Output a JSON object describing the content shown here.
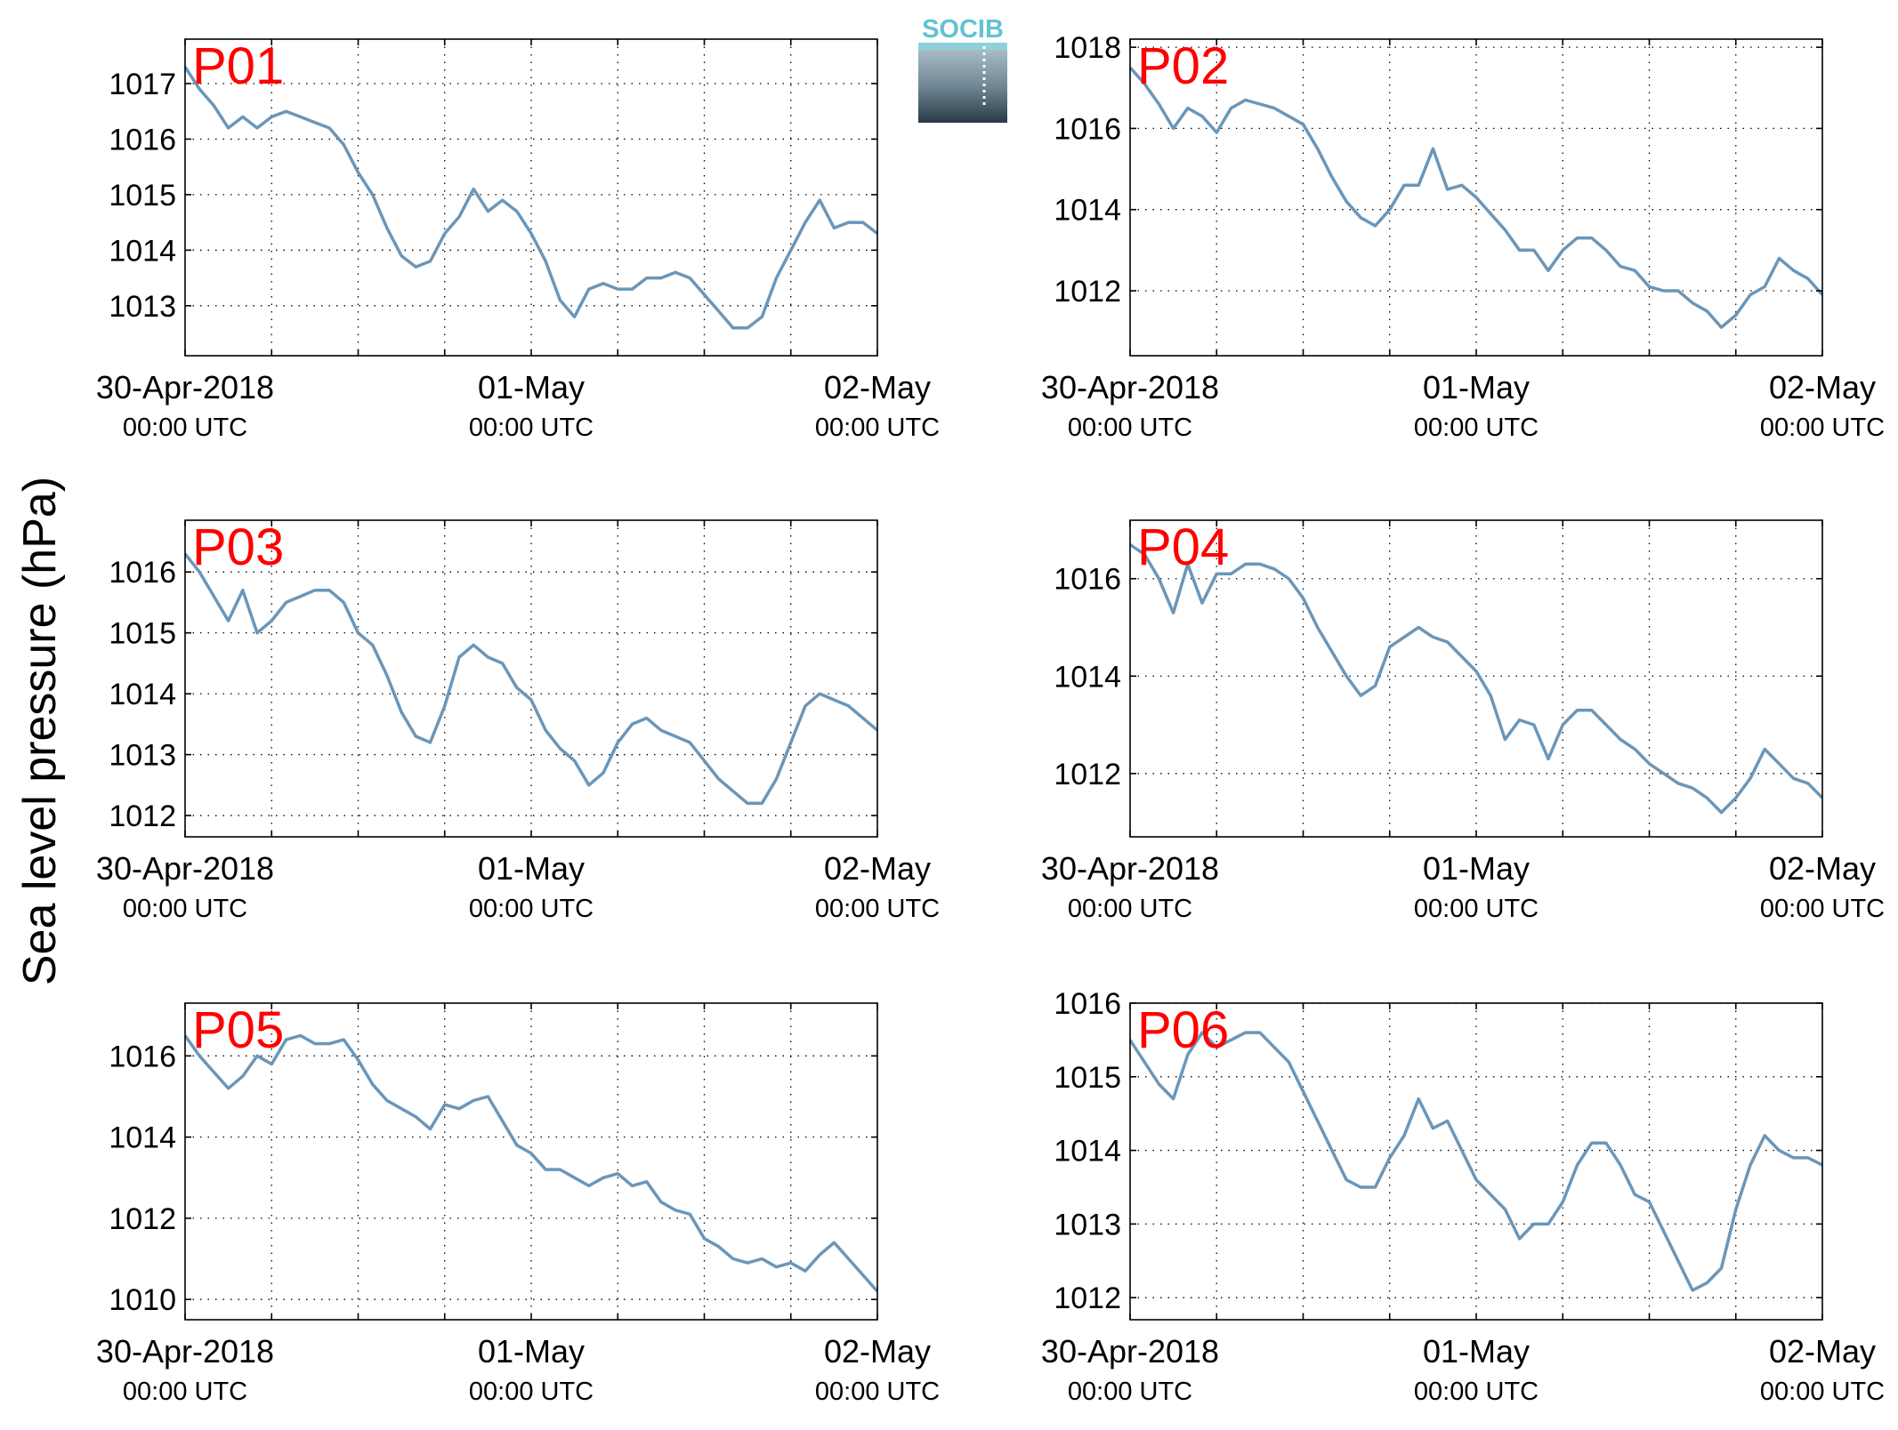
{
  "figure": {
    "ylabel": "Sea level pressure (hPa)",
    "logo_text": "SOCIB"
  },
  "colors": {
    "line": "#6a96b9",
    "panel_label": "#ff0000",
    "axis": "#000000",
    "grid": "#000000",
    "logo_top": "#63c2d3",
    "logo_dark": "#2a3a45"
  },
  "chart_data": [
    {
      "type": "line",
      "name": "P01",
      "x_ticks": [
        "30-Apr-2018|00:00 UTC",
        "01-May|00:00 UTC",
        "02-May|00:00 UTC"
      ],
      "xlim_hours": [
        0,
        48
      ],
      "ylim": [
        1012.1,
        1017.8
      ],
      "yticks": [
        1013,
        1014,
        1015,
        1016,
        1017
      ],
      "grid": "dotted",
      "x_hours": [
        0,
        1,
        2,
        3,
        4,
        5,
        6,
        7,
        8,
        9,
        10,
        11,
        12,
        13,
        14,
        15,
        16,
        17,
        18,
        19,
        20,
        21,
        22,
        23,
        24,
        25,
        26,
        27,
        28,
        29,
        30,
        31,
        32,
        33,
        34,
        35,
        36,
        37,
        38,
        39,
        40,
        41,
        42,
        43,
        44,
        45,
        46,
        47,
        48
      ],
      "values": [
        1017.3,
        1016.9,
        1016.6,
        1016.2,
        1016.4,
        1016.2,
        1016.4,
        1016.5,
        1016.4,
        1016.3,
        1016.2,
        1015.9,
        1015.4,
        1015.0,
        1014.4,
        1013.9,
        1013.7,
        1013.8,
        1014.3,
        1014.6,
        1015.1,
        1014.7,
        1014.9,
        1014.7,
        1014.3,
        1013.8,
        1013.1,
        1012.8,
        1013.3,
        1013.4,
        1013.3,
        1013.3,
        1013.5,
        1013.5,
        1013.6,
        1013.5,
        1013.2,
        1012.9,
        1012.6,
        1012.6,
        1012.8,
        1013.5,
        1014.0,
        1014.5,
        1014.9,
        1014.4,
        1014.5,
        1014.5,
        1014.3
      ]
    },
    {
      "type": "line",
      "name": "P02",
      "x_ticks": [
        "30-Apr-2018|00:00 UTC",
        "01-May|00:00 UTC",
        "02-May|00:00 UTC"
      ],
      "xlim_hours": [
        0,
        48
      ],
      "ylim": [
        1010.4,
        1018.2
      ],
      "yticks": [
        1012,
        1014,
        1016,
        1018
      ],
      "grid": "dotted",
      "x_hours": [
        0,
        1,
        2,
        3,
        4,
        5,
        6,
        7,
        8,
        9,
        10,
        11,
        12,
        13,
        14,
        15,
        16,
        17,
        18,
        19,
        20,
        21,
        22,
        23,
        24,
        25,
        26,
        27,
        28,
        29,
        30,
        31,
        32,
        33,
        34,
        35,
        36,
        37,
        38,
        39,
        40,
        41,
        42,
        43,
        44,
        45,
        46,
        47,
        48
      ],
      "values": [
        1017.5,
        1017.1,
        1016.6,
        1016.0,
        1016.5,
        1016.3,
        1015.9,
        1016.5,
        1016.7,
        1016.6,
        1016.5,
        1016.3,
        1016.1,
        1015.5,
        1014.8,
        1014.2,
        1013.8,
        1013.6,
        1014.0,
        1014.6,
        1014.6,
        1015.5,
        1014.5,
        1014.6,
        1014.3,
        1013.9,
        1013.5,
        1013.0,
        1013.0,
        1012.5,
        1013.0,
        1013.3,
        1013.3,
        1013.0,
        1012.6,
        1012.5,
        1012.1,
        1012.0,
        1012.0,
        1011.7,
        1011.5,
        1011.1,
        1011.4,
        1011.9,
        1012.1,
        1012.8,
        1012.5,
        1012.3,
        1011.9
      ]
    },
    {
      "type": "line",
      "name": "P03",
      "x_ticks": [
        "30-Apr-2018|00:00 UTC",
        "01-May|00:00 UTC",
        "02-May|00:00 UTC"
      ],
      "xlim_hours": [
        0,
        48
      ],
      "ylim": [
        1011.65,
        1016.85
      ],
      "yticks": [
        1012,
        1013,
        1014,
        1015,
        1016
      ],
      "grid": "dotted",
      "x_hours": [
        0,
        1,
        2,
        3,
        4,
        5,
        6,
        7,
        8,
        9,
        10,
        11,
        12,
        13,
        14,
        15,
        16,
        17,
        18,
        19,
        20,
        21,
        22,
        23,
        24,
        25,
        26,
        27,
        28,
        29,
        30,
        31,
        32,
        33,
        34,
        35,
        36,
        37,
        38,
        39,
        40,
        41,
        42,
        43,
        44,
        45,
        46,
        47,
        48
      ],
      "values": [
        1016.3,
        1016.0,
        1015.6,
        1015.2,
        1015.7,
        1015.0,
        1015.2,
        1015.5,
        1015.6,
        1015.7,
        1015.7,
        1015.5,
        1015.0,
        1014.8,
        1014.3,
        1013.7,
        1013.3,
        1013.2,
        1013.8,
        1014.6,
        1014.8,
        1014.6,
        1014.5,
        1014.1,
        1013.9,
        1013.4,
        1013.1,
        1012.9,
        1012.5,
        1012.7,
        1013.2,
        1013.5,
        1013.6,
        1013.4,
        1013.3,
        1013.2,
        1012.9,
        1012.6,
        1012.4,
        1012.2,
        1012.2,
        1012.6,
        1013.2,
        1013.8,
        1014.0,
        1013.9,
        1013.8,
        1013.6,
        1013.4
      ]
    },
    {
      "type": "line",
      "name": "P04",
      "x_ticks": [
        "30-Apr-2018|00:00 UTC",
        "01-May|00:00 UTC",
        "02-May|00:00 UTC"
      ],
      "xlim_hours": [
        0,
        48
      ],
      "ylim": [
        1010.7,
        1017.2
      ],
      "yticks": [
        1012,
        1014,
        1016
      ],
      "grid": "dotted",
      "x_hours": [
        0,
        1,
        2,
        3,
        4,
        5,
        6,
        7,
        8,
        9,
        10,
        11,
        12,
        13,
        14,
        15,
        16,
        17,
        18,
        19,
        20,
        21,
        22,
        23,
        24,
        25,
        26,
        27,
        28,
        29,
        30,
        31,
        32,
        33,
        34,
        35,
        36,
        37,
        38,
        39,
        40,
        41,
        42,
        43,
        44,
        45,
        46,
        47,
        48
      ],
      "values": [
        1016.7,
        1016.5,
        1016.0,
        1015.3,
        1016.3,
        1015.5,
        1016.1,
        1016.1,
        1016.3,
        1016.3,
        1016.2,
        1016.0,
        1015.6,
        1015.0,
        1014.5,
        1014.0,
        1013.6,
        1013.8,
        1014.6,
        1014.8,
        1015.0,
        1014.8,
        1014.7,
        1014.4,
        1014.1,
        1013.6,
        1012.7,
        1013.1,
        1013.0,
        1012.3,
        1013.0,
        1013.3,
        1013.3,
        1013.0,
        1012.7,
        1012.5,
        1012.2,
        1012.0,
        1011.8,
        1011.7,
        1011.5,
        1011.2,
        1011.5,
        1011.9,
        1012.5,
        1012.2,
        1011.9,
        1011.8,
        1011.5
      ]
    },
    {
      "type": "line",
      "name": "P05",
      "x_ticks": [
        "30-Apr-2018|00:00 UTC",
        "01-May|00:00 UTC",
        "02-May|00:00 UTC"
      ],
      "xlim_hours": [
        0,
        48
      ],
      "ylim": [
        1009.5,
        1017.3
      ],
      "yticks": [
        1010,
        1012,
        1014,
        1016
      ],
      "grid": "dotted",
      "x_hours": [
        0,
        1,
        2,
        3,
        4,
        5,
        6,
        7,
        8,
        9,
        10,
        11,
        12,
        13,
        14,
        15,
        16,
        17,
        18,
        19,
        20,
        21,
        22,
        23,
        24,
        25,
        26,
        27,
        28,
        29,
        30,
        31,
        32,
        33,
        34,
        35,
        36,
        37,
        38,
        39,
        40,
        41,
        42,
        43,
        44,
        45,
        46,
        47,
        48
      ],
      "values": [
        1016.5,
        1016.0,
        1015.6,
        1015.2,
        1015.5,
        1016.0,
        1015.8,
        1016.4,
        1016.5,
        1016.3,
        1016.3,
        1016.4,
        1015.9,
        1015.3,
        1014.9,
        1014.7,
        1014.5,
        1014.2,
        1014.8,
        1014.7,
        1014.9,
        1015.0,
        1014.4,
        1013.8,
        1013.6,
        1013.2,
        1013.2,
        1013.0,
        1012.8,
        1013.0,
        1013.1,
        1012.8,
        1012.9,
        1012.4,
        1012.2,
        1012.1,
        1011.5,
        1011.3,
        1011.0,
        1010.9,
        1011.0,
        1010.8,
        1010.9,
        1010.7,
        1011.1,
        1011.4,
        1011.0,
        1010.6,
        1010.2
      ]
    },
    {
      "type": "line",
      "name": "P06",
      "x_ticks": [
        "30-Apr-2018|00:00 UTC",
        "01-May|00:00 UTC",
        "02-May|00:00 UTC"
      ],
      "xlim_hours": [
        0,
        48
      ],
      "ylim": [
        1011.7,
        1016.0
      ],
      "yticks": [
        1012,
        1013,
        1014,
        1015,
        1016
      ],
      "grid": "dotted",
      "x_hours": [
        0,
        1,
        2,
        3,
        4,
        5,
        6,
        7,
        8,
        9,
        10,
        11,
        12,
        13,
        14,
        15,
        16,
        17,
        18,
        19,
        20,
        21,
        22,
        23,
        24,
        25,
        26,
        27,
        28,
        29,
        30,
        31,
        32,
        33,
        34,
        35,
        36,
        37,
        38,
        39,
        40,
        41,
        42,
        43,
        44,
        45,
        46,
        47,
        48
      ],
      "values": [
        1015.5,
        1015.2,
        1014.9,
        1014.7,
        1015.3,
        1015.6,
        1015.4,
        1015.5,
        1015.6,
        1015.6,
        1015.4,
        1015.2,
        1014.8,
        1014.4,
        1014.0,
        1013.6,
        1013.5,
        1013.5,
        1013.9,
        1014.2,
        1014.7,
        1014.3,
        1014.4,
        1014.0,
        1013.6,
        1013.4,
        1013.2,
        1012.8,
        1013.0,
        1013.0,
        1013.3,
        1013.8,
        1014.1,
        1014.1,
        1013.8,
        1013.4,
        1013.3,
        1012.9,
        1012.5,
        1012.1,
        1012.2,
        1012.4,
        1013.2,
        1013.8,
        1014.2,
        1014.0,
        1013.9,
        1013.9,
        1013.8
      ]
    }
  ]
}
